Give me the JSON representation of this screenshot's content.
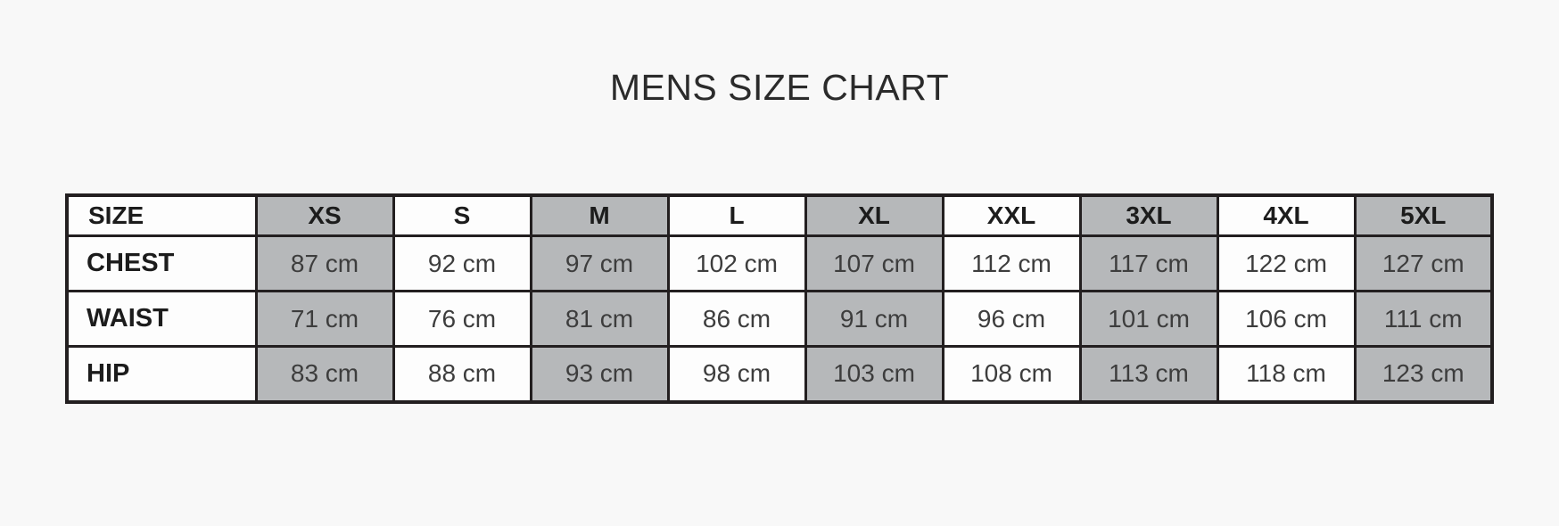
{
  "page": {
    "title": "MENS SIZE CHART",
    "background_color": "#f8f8f8"
  },
  "colors": {
    "grid_border": "#231f20",
    "shaded_cell": "#b6b8ba",
    "plain_cell": "#fdfdfd",
    "label_text": "#1c1c1c",
    "value_text": "#3d3d3d",
    "title_text": "#2b2b2b"
  },
  "chart_data": {
    "type": "table",
    "title": "MENS SIZE CHART",
    "unit": "cm",
    "columns": [
      "SIZE",
      "XS",
      "S",
      "M",
      "L",
      "XL",
      "XXL",
      "3XL",
      "4XL",
      "5XL"
    ],
    "shaded_columns": [
      "XS",
      "M",
      "XL",
      "3XL",
      "5XL"
    ],
    "rows": [
      {
        "label": "CHEST",
        "values_cm": [
          87,
          92,
          97,
          102,
          107,
          112,
          117,
          122,
          127
        ],
        "cells": [
          "87 cm",
          "92 cm",
          "97 cm",
          "102 cm",
          "107 cm",
          "112 cm",
          "117 cm",
          "122 cm",
          "127 cm"
        ]
      },
      {
        "label": "WAIST",
        "values_cm": [
          71,
          76,
          81,
          86,
          91,
          96,
          101,
          106,
          111
        ],
        "cells": [
          "71 cm",
          "76 cm",
          "81 cm",
          "86 cm",
          "91 cm",
          "96 cm",
          "101 cm",
          "106 cm",
          "111 cm"
        ]
      },
      {
        "label": "HIP",
        "values_cm": [
          83,
          88,
          93,
          98,
          103,
          108,
          113,
          118,
          123
        ],
        "cells": [
          "83 cm",
          "88 cm",
          "93 cm",
          "98 cm",
          "103 cm",
          "108 cm",
          "113 cm",
          "118 cm",
          "123 cm"
        ]
      }
    ]
  }
}
